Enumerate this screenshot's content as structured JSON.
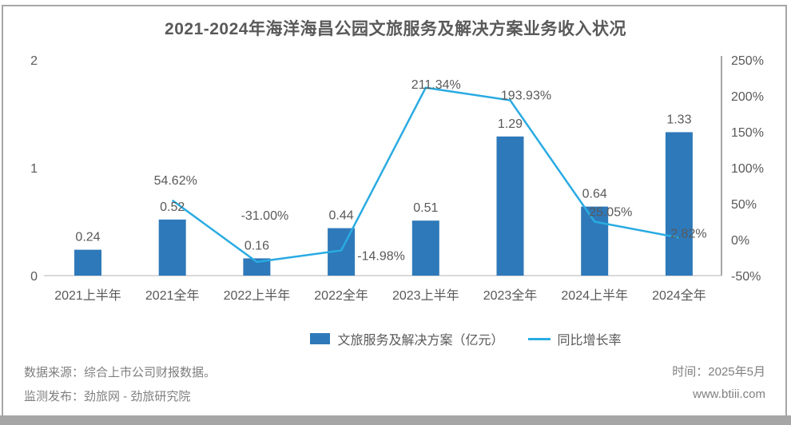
{
  "page": {
    "title": "2021-2024年海洋海昌公园文旅服务及解决方案业务收入状况",
    "footer": {
      "source_line": "数据来源：综合上市公司财报数据。",
      "publisher_line": "监测发布：劲旅网 - 劲旅研究院",
      "time_line": "时间：2025年5月",
      "website": "www.btiii.com"
    }
  },
  "colors": {
    "bar": "#2E79B9",
    "line": "#29ABE2",
    "title_text": "#595959",
    "label_text": "#595959",
    "category_text": "#595959",
    "baseline": "#d9d9d9",
    "right_axis_line": "#a6a6a6",
    "frame": "#a6a6a6",
    "footer_text": "#7f7f7f",
    "bottom_bar": "#a6a6a6"
  },
  "chart_data": {
    "type": "bar",
    "subtype": "combo-bar-line-dual-axis",
    "title": "2021-2024年海洋海昌公园文旅服务及解决方案业务收入状况",
    "categories": [
      "2021上半年",
      "2021全年",
      "2022上半年",
      "2022全年",
      "2023上半年",
      "2023全年",
      "2024上半年",
      "2024全年"
    ],
    "series": [
      {
        "name": "文旅服务及解决方案（亿元）",
        "type": "bar",
        "axis": "left",
        "values": [
          0.24,
          0.52,
          0.16,
          0.44,
          0.51,
          1.29,
          0.64,
          1.33
        ],
        "labels": [
          "0.24",
          "0.52",
          "0.16",
          "0.44",
          "0.51",
          "1.29",
          "0.64",
          "1.33"
        ]
      },
      {
        "name": "同比增长率",
        "type": "line",
        "axis": "right",
        "values": [
          null,
          54.62,
          -31.0,
          -14.98,
          211.34,
          193.93,
          25.05,
          2.82
        ],
        "labels": [
          null,
          "54.62%",
          "-31.00%",
          "-14.98%",
          "211.34%",
          "193.93%",
          "25.05%",
          "2.82%"
        ]
      }
    ],
    "left_axis": {
      "min": 0,
      "max": 2,
      "tick_values": [
        2,
        1,
        0
      ],
      "tick_labels": [
        "2",
        "1",
        "0"
      ]
    },
    "right_axis": {
      "min": -50,
      "max": 250,
      "tick_values": [
        250,
        200,
        150,
        100,
        50,
        0,
        -50
      ],
      "tick_labels": [
        "250%",
        "200%",
        "150%",
        "100%",
        "50%",
        "0%",
        "-50%"
      ]
    },
    "grid": false,
    "legend_position": "bottom",
    "xlabel": "",
    "ylabel_left": "",
    "ylabel_right": ""
  }
}
